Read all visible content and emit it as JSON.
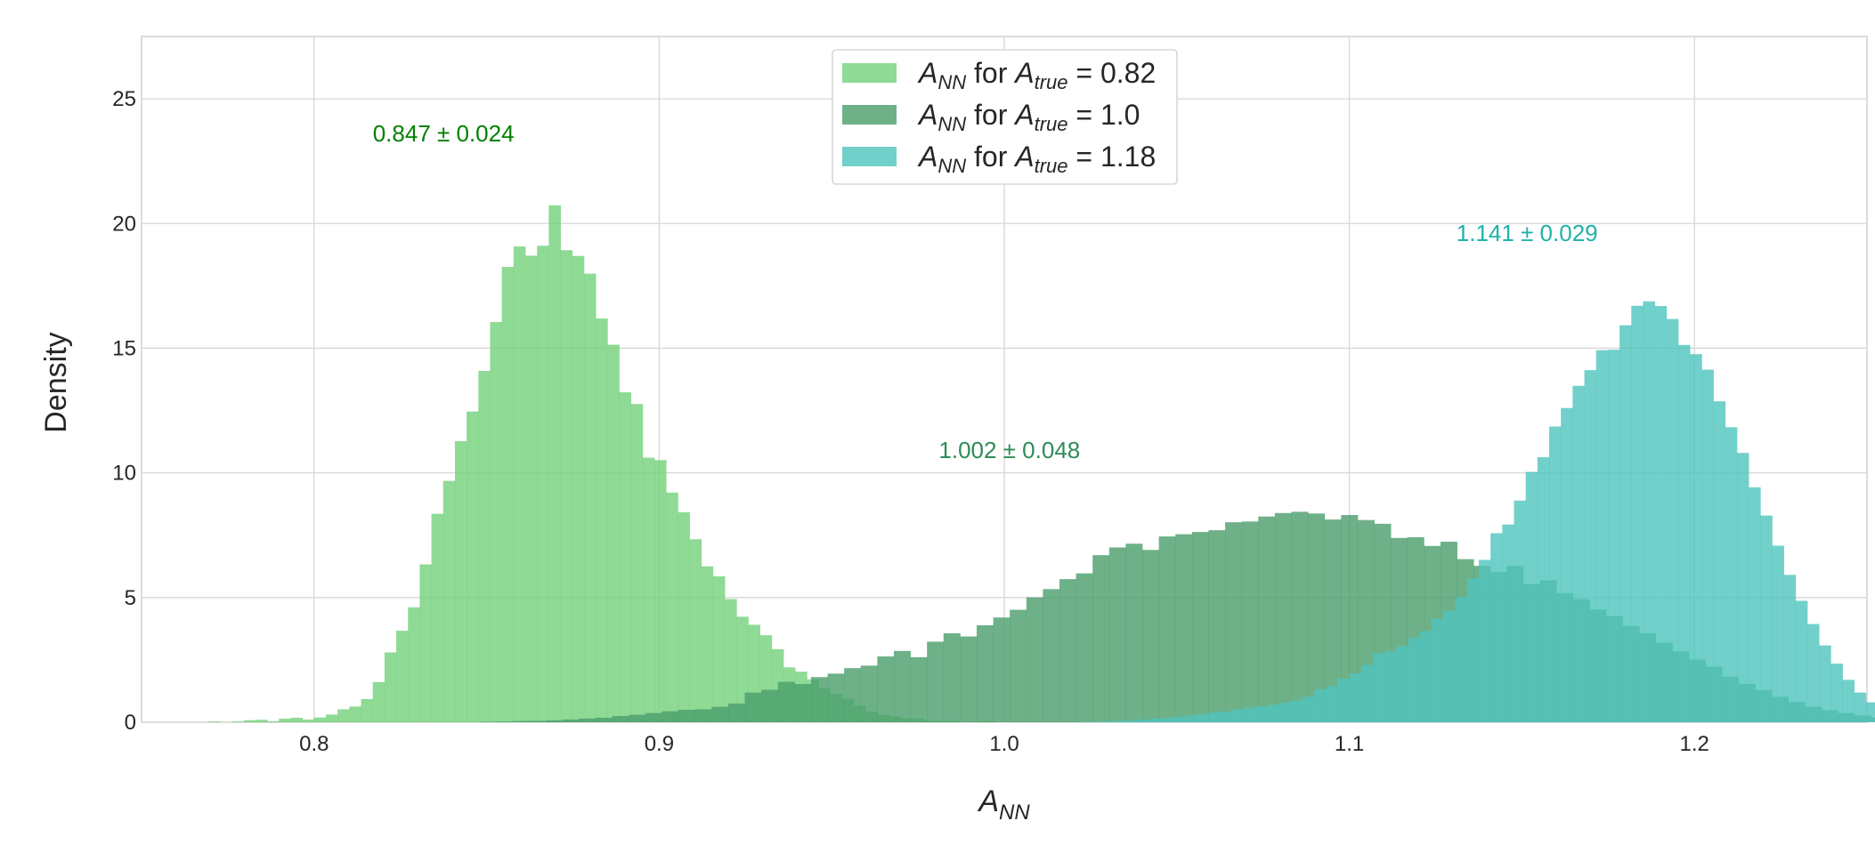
{
  "chart_data": {
    "type": "histogram",
    "xlabel": "A_NN",
    "ylabel": "Density",
    "xlim": [
      0.75,
      1.25
    ],
    "ylim": [
      0,
      27.5
    ],
    "xticks": [
      "0.8",
      "0.9",
      "1.0",
      "1.1",
      "1.2"
    ],
    "xtick_values": [
      0.8,
      0.9,
      1.0,
      1.1,
      1.2
    ],
    "yticks": [
      "0",
      "5",
      "10",
      "15",
      "20",
      "25"
    ],
    "ytick_values": [
      0,
      5,
      10,
      15,
      20,
      25
    ],
    "grid": true,
    "legend_position": "top-center",
    "series": [
      {
        "name": "A_NN for A_true = 0.82",
        "legend": {
          "prefix": "A",
          "prefix_sub": "NN",
          "middle": " for ",
          "var": "A",
          "var_sub": "true",
          "value": " = 0.82"
        },
        "color": "#73d17a",
        "x_start": 0.7694,
        "bin_width": 0.0034,
        "density": [
          0.03,
          0.0,
          0.03,
          0.08,
          0.1,
          0.04,
          0.14,
          0.18,
          0.11,
          0.19,
          0.31,
          0.52,
          0.63,
          0.93,
          1.61,
          2.8,
          3.67,
          4.61,
          6.33,
          8.36,
          9.68,
          11.27,
          12.46,
          14.09,
          16.05,
          18.26,
          19.08,
          18.71,
          19.11,
          20.73,
          18.93,
          18.7,
          17.99,
          16.19,
          15.14,
          13.23,
          12.76,
          10.61,
          10.51,
          9.21,
          8.42,
          7.34,
          6.25,
          5.85,
          4.94,
          4.23,
          3.91,
          3.49,
          2.93,
          2.2,
          2.03,
          1.72,
          1.37,
          1.13,
          0.94,
          0.67,
          0.43,
          0.3,
          0.23,
          0.16,
          0.15,
          0.06,
          0.05,
          0.05,
          0.0,
          0.03,
          0.05
        ],
        "annotation": "0.847 ± 0.024",
        "annotation_x": 0.8375,
        "annotation_y": 23.3,
        "annotation_color": "#008000"
      },
      {
        "name": "A_NN for A_true = 1.0",
        "legend": {
          "prefix": "A",
          "prefix_sub": "NN",
          "middle": " for ",
          "var": "A",
          "var_sub": "true",
          "value": " = 1.0"
        },
        "color": "#4a9e6b",
        "x_start": 0.848,
        "bin_width": 0.0048,
        "density": [
          0.02,
          0.03,
          0.05,
          0.06,
          0.08,
          0.11,
          0.15,
          0.18,
          0.25,
          0.3,
          0.37,
          0.44,
          0.5,
          0.52,
          0.62,
          0.75,
          1.19,
          1.3,
          1.62,
          1.53,
          1.81,
          1.95,
          2.17,
          2.27,
          2.64,
          2.86,
          2.61,
          3.23,
          3.57,
          3.44,
          3.89,
          4.2,
          4.51,
          5.01,
          5.34,
          5.74,
          5.97,
          6.7,
          7.01,
          7.16,
          6.91,
          7.45,
          7.54,
          7.63,
          7.7,
          8.02,
          8.05,
          8.25,
          8.39,
          8.44,
          8.37,
          8.13,
          8.31,
          8.11,
          7.96,
          7.39,
          7.42,
          7.07,
          7.24,
          6.54,
          6.27,
          6.02,
          6.27,
          5.54,
          5.69,
          5.18,
          4.94,
          4.52,
          4.26,
          3.86,
          3.56,
          3.19,
          2.84,
          2.51,
          2.23,
          1.83,
          1.54,
          1.29,
          1.02,
          0.81,
          0.62,
          0.48,
          0.37,
          0.27,
          0.19,
          0.13,
          0.09,
          0.06,
          0.04,
          0.03,
          0.02
        ],
        "annotation": "1.002 ± 0.048",
        "annotation_x": 1.0015,
        "annotation_y": 10.6,
        "annotation_color": "#2e8b57"
      },
      {
        "name": "A_NN for A_true = 1.18",
        "legend": {
          "prefix": "A",
          "prefix_sub": "NN",
          "middle": " for ",
          "var": "A",
          "var_sub": "true",
          "value": " = 1.18"
        },
        "color": "#4fc4be",
        "x_start": 1.0219,
        "bin_width": 0.0034,
        "density": [
          0.02,
          0.03,
          0.04,
          0.05,
          0.08,
          0.1,
          0.14,
          0.17,
          0.21,
          0.27,
          0.33,
          0.38,
          0.43,
          0.5,
          0.58,
          0.64,
          0.7,
          0.78,
          0.87,
          1.03,
          1.32,
          1.44,
          1.75,
          1.95,
          2.29,
          2.78,
          2.85,
          3.06,
          3.37,
          3.66,
          4.15,
          4.47,
          5.01,
          5.77,
          6.51,
          7.58,
          7.93,
          8.89,
          10.04,
          10.63,
          11.86,
          12.6,
          13.49,
          14.12,
          14.92,
          14.94,
          15.92,
          16.7,
          16.88,
          16.69,
          16.17,
          15.13,
          14.76,
          14.14,
          12.87,
          11.83,
          10.8,
          9.42,
          8.29,
          7.08,
          5.91,
          4.87,
          3.94,
          3.08,
          2.35,
          1.7,
          1.19,
          0.8,
          0.51,
          0.31,
          0.18,
          0.1,
          0.05,
          0.03,
          0.02,
          0.01,
          0.01,
          0.01,
          0.01,
          0.01
        ],
        "annotation": "1.141 ± 0.029",
        "annotation_x": 1.1515,
        "annotation_y": 19.3,
        "annotation_color": "#20b2aa"
      }
    ]
  }
}
